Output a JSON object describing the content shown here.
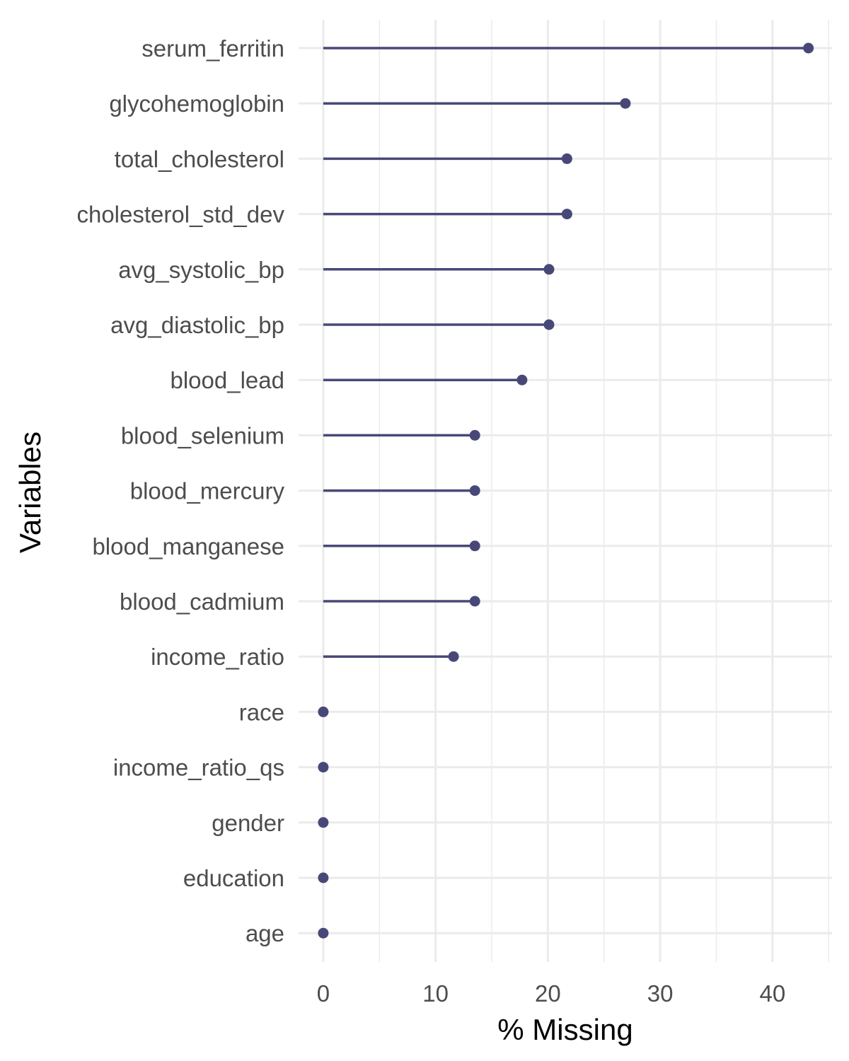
{
  "colors": {
    "series": "#484878",
    "grid": "#ebebeb",
    "tick_text": "#4d4d4d",
    "axis_title": "#000000"
  },
  "chart_data": {
    "type": "lollipop",
    "title": "",
    "xlabel": "% Missing",
    "ylabel": "Variables",
    "xlim": [
      -2.2,
      45.3
    ],
    "x_ticks": [
      0,
      10,
      20,
      30,
      40
    ],
    "x_minor_ticks": [
      5,
      15,
      25,
      35,
      45
    ],
    "grid": true,
    "categories": [
      "serum_ferritin",
      "glycohemoglobin",
      "total_cholesterol",
      "cholesterol_std_dev",
      "avg_systolic_bp",
      "avg_diastolic_bp",
      "blood_lead",
      "blood_selenium",
      "blood_mercury",
      "blood_manganese",
      "blood_cadmium",
      "income_ratio",
      "race",
      "income_ratio_qs",
      "gender",
      "education",
      "age"
    ],
    "values": [
      43.2,
      26.9,
      21.7,
      21.7,
      20.1,
      20.1,
      17.7,
      13.5,
      13.5,
      13.5,
      13.5,
      11.6,
      0,
      0,
      0,
      0,
      0
    ]
  }
}
